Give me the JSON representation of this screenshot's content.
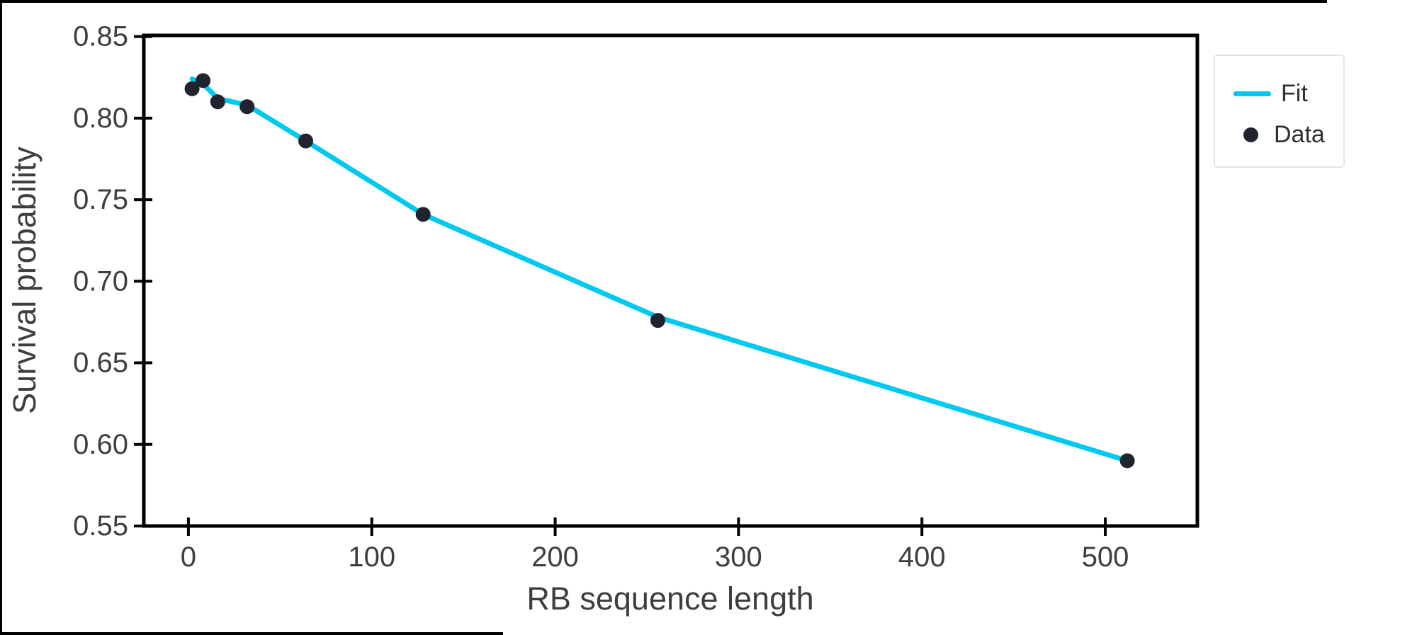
{
  "chart_data": {
    "type": "scatter",
    "title": "",
    "xlabel": "RB sequence length",
    "ylabel": "Survival probability",
    "xlim": [
      -24.3,
      550.2
    ],
    "ylim": [
      0.55,
      0.8507
    ],
    "grid": false,
    "x_ticks": [
      0,
      100,
      200,
      300,
      400,
      500
    ],
    "x_tick_labels": [
      "0",
      "100",
      "200",
      "300",
      "400",
      "500"
    ],
    "y_ticks": [
      0.55,
      0.6,
      0.65,
      0.7,
      0.75,
      0.8,
      0.85
    ],
    "y_tick_labels": [
      "0.55",
      "0.60",
      "0.65",
      "0.70",
      "0.75",
      "0.80",
      "0.85"
    ],
    "legend_position": "top-right-outside",
    "series": [
      {
        "name": "Fit",
        "type": "line",
        "color": "#00c9f0",
        "x": [
          2,
          8,
          16,
          32,
          64,
          128,
          256,
          512
        ],
        "y": [
          0.824,
          0.821,
          0.812,
          0.808,
          0.786,
          0.741,
          0.678,
          0.59
        ]
      },
      {
        "name": "Data",
        "type": "scatter",
        "color": "#20242f",
        "x": [
          2,
          8,
          16,
          32,
          64,
          128,
          256,
          512
        ],
        "y": [
          0.818,
          0.823,
          0.81,
          0.807,
          0.786,
          0.741,
          0.676,
          0.59
        ]
      }
    ],
    "legend": [
      {
        "label": "Fit"
      },
      {
        "label": "Data"
      }
    ],
    "style": {
      "spine_color": "#000000",
      "tick_label_color": "#3e3e3e",
      "axis_label_color": "#3e3e3e"
    }
  }
}
